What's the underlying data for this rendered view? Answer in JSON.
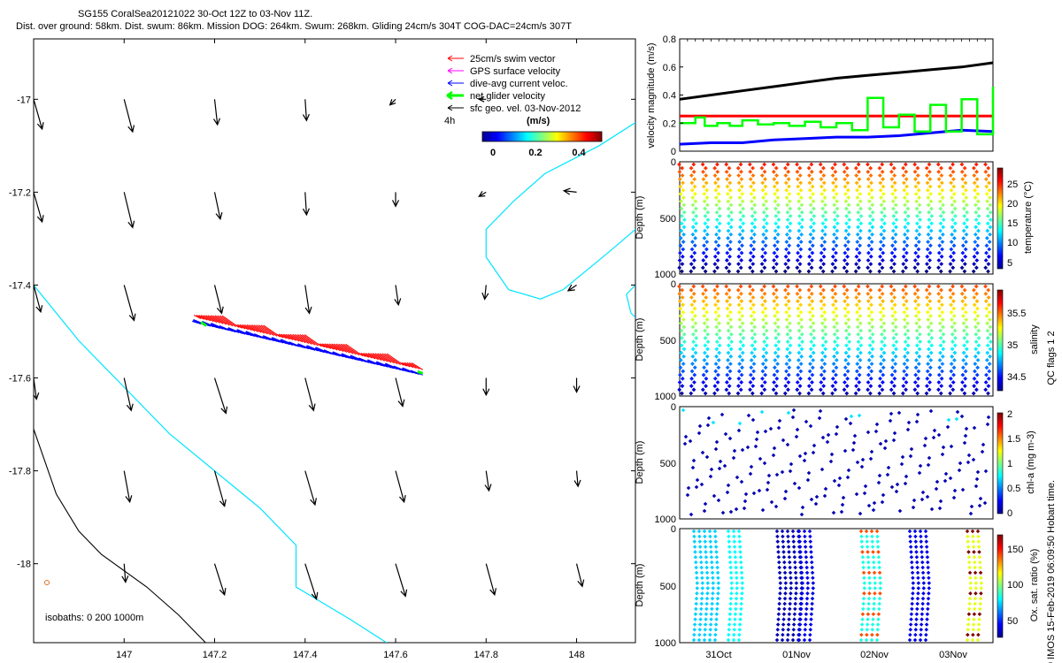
{
  "header": {
    "line1": "SG155 CoralSea20121022 30-Oct 12Z to 03-Nov 11Z.",
    "line2": "Dist. over ground: 58km. Dist. swum: 86km. Mission DOG: 264km. Swum: 268km. Gliding 24cm/s 304T COG-DAC=24cm/s 307T"
  },
  "chart_data": [
    {
      "type": "scatter",
      "name": "map",
      "xlim": [
        146.8,
        148.13
      ],
      "ylim": [
        -18.17,
        -16.87
      ],
      "xticks": [
        147,
        147.2,
        147.4,
        147.6,
        147.8,
        148
      ],
      "xtick_labels": [
        "147",
        "147.2",
        "147.4",
        "147.6",
        "147.8",
        "148"
      ],
      "yticks": [
        -17,
        -17.2,
        -17.4,
        -17.6,
        -17.8,
        -18
      ],
      "ytick_labels": [
        "-17",
        "-17.2",
        "-17.4",
        "-17.6",
        "-17.8",
        "-18"
      ],
      "legend": {
        "position": "top-right",
        "entries": [
          {
            "label": "25cm/s swim vector",
            "color": "#ff0000"
          },
          {
            "label": "GPS surface velocity",
            "color": "#ff00ff"
          },
          {
            "label": "dive-avg current veloc.",
            "color": "#0000ff"
          },
          {
            "label": "net glider velocity",
            "color": "#00ff00"
          },
          {
            "label": "sfc geo. vel. 03-Nov-2012",
            "color": "#000000"
          }
        ]
      },
      "scale_label": "4h",
      "colorbar": {
        "title": "(m/s)",
        "ticks": [
          "0",
          "0.2",
          "0.4"
        ]
      },
      "isobaths_label": "isobaths: 0   200   1000m",
      "arrows": [
        {
          "lon": 147.0,
          "lat": -17.0,
          "u": 0.06,
          "v": -0.23
        },
        {
          "lon": 147.2,
          "lat": -17.0,
          "u": 0.02,
          "v": -0.18
        },
        {
          "lon": 147.4,
          "lat": -17.0,
          "u": 0.01,
          "v": -0.15
        },
        {
          "lon": 147.6,
          "lat": -17.0,
          "u": -0.04,
          "v": -0.04
        },
        {
          "lon": 147.8,
          "lat": -17.0,
          "u": -0.05,
          "v": 0.0
        },
        {
          "lon": 147.0,
          "lat": -17.2,
          "u": 0.06,
          "v": -0.25
        },
        {
          "lon": 147.2,
          "lat": -17.2,
          "u": 0.04,
          "v": -0.19
        },
        {
          "lon": 147.4,
          "lat": -17.2,
          "u": 0.01,
          "v": -0.16
        },
        {
          "lon": 147.6,
          "lat": -17.2,
          "u": 0.0,
          "v": -0.1
        },
        {
          "lon": 147.8,
          "lat": -17.2,
          "u": -0.05,
          "v": -0.03
        },
        {
          "lon": 148.0,
          "lat": -17.2,
          "u": -0.09,
          "v": 0.01
        },
        {
          "lon": 146.8,
          "lat": -17.0,
          "u": 0.06,
          "v": -0.21
        },
        {
          "lon": 146.8,
          "lat": -17.2,
          "u": 0.06,
          "v": -0.21
        },
        {
          "lon": 146.8,
          "lat": -17.4,
          "u": 0.05,
          "v": -0.19
        },
        {
          "lon": 146.8,
          "lat": -17.6,
          "u": 0.02,
          "v": -0.15
        },
        {
          "lon": 147.0,
          "lat": -17.4,
          "u": 0.07,
          "v": -0.25
        },
        {
          "lon": 147.2,
          "lat": -17.4,
          "u": 0.05,
          "v": -0.2
        },
        {
          "lon": 147.4,
          "lat": -17.4,
          "u": 0.03,
          "v": -0.2
        },
        {
          "lon": 147.6,
          "lat": -17.4,
          "u": 0.02,
          "v": -0.14
        },
        {
          "lon": 147.8,
          "lat": -17.4,
          "u": -0.01,
          "v": -0.1
        },
        {
          "lon": 148.0,
          "lat": -17.4,
          "u": -0.06,
          "v": -0.04
        },
        {
          "lon": 147.0,
          "lat": -17.6,
          "u": 0.05,
          "v": -0.23
        },
        {
          "lon": 147.2,
          "lat": -17.6,
          "u": 0.08,
          "v": -0.25
        },
        {
          "lon": 147.4,
          "lat": -17.6,
          "u": 0.06,
          "v": -0.23
        },
        {
          "lon": 147.6,
          "lat": -17.6,
          "u": 0.05,
          "v": -0.2
        },
        {
          "lon": 147.8,
          "lat": -17.6,
          "u": 0.0,
          "v": -0.12
        },
        {
          "lon": 148.0,
          "lat": -17.6,
          "u": 0.0,
          "v": -0.1
        },
        {
          "lon": 147.0,
          "lat": -17.8,
          "u": 0.04,
          "v": -0.22
        },
        {
          "lon": 147.2,
          "lat": -17.8,
          "u": 0.07,
          "v": -0.25
        },
        {
          "lon": 147.4,
          "lat": -17.8,
          "u": 0.07,
          "v": -0.24
        },
        {
          "lon": 147.6,
          "lat": -17.8,
          "u": 0.06,
          "v": -0.22
        },
        {
          "lon": 147.8,
          "lat": -17.8,
          "u": 0.02,
          "v": -0.14
        },
        {
          "lon": 148.0,
          "lat": -17.8,
          "u": 0.01,
          "v": -0.11
        },
        {
          "lon": 147.0,
          "lat": -18.0,
          "u": 0.01,
          "v": -0.13
        },
        {
          "lon": 147.2,
          "lat": -18.0,
          "u": 0.07,
          "v": -0.22
        },
        {
          "lon": 147.4,
          "lat": -18.0,
          "u": 0.08,
          "v": -0.25
        },
        {
          "lon": 147.6,
          "lat": -18.0,
          "u": 0.07,
          "v": -0.23
        },
        {
          "lon": 147.8,
          "lat": -18.0,
          "u": 0.06,
          "v": -0.22
        },
        {
          "lon": 148.0,
          "lat": -18.0,
          "u": 0.04,
          "v": -0.16
        }
      ],
      "track": {
        "start": [
          147.17,
          -17.48
        ],
        "end": [
          147.66,
          -17.59
        ]
      },
      "isobath_200m": [
        [
          146.8,
          -17.4
        ],
        [
          146.9,
          -17.52
        ],
        [
          147.0,
          -17.62
        ],
        [
          147.1,
          -17.72
        ],
        [
          147.2,
          -17.8
        ],
        [
          147.3,
          -17.88
        ],
        [
          147.38,
          -17.96
        ],
        [
          147.38,
          -18.05
        ],
        [
          147.5,
          -18.12
        ],
        [
          147.58,
          -18.17
        ]
      ],
      "isobath_0m": [
        [
          146.8,
          -17.71
        ],
        [
          146.85,
          -17.85
        ],
        [
          146.9,
          -17.93
        ],
        [
          146.95,
          -17.98
        ],
        [
          147.05,
          -18.05
        ],
        [
          147.12,
          -18.11
        ],
        [
          147.18,
          -18.17
        ]
      ],
      "coast_feature": [
        [
          148.13,
          -17.05
        ],
        [
          148.05,
          -17.1
        ],
        [
          147.93,
          -17.16
        ],
        [
          147.86,
          -17.22
        ],
        [
          147.8,
          -17.28
        ],
        [
          147.8,
          -17.34
        ],
        [
          147.85,
          -17.41
        ],
        [
          147.92,
          -17.43
        ],
        [
          147.97,
          -17.41
        ],
        [
          148.07,
          -17.33
        ],
        [
          148.13,
          -17.28
        ]
      ],
      "coast_feature2": [
        [
          148.13,
          -17.4
        ],
        [
          148.11,
          -17.42
        ],
        [
          148.12,
          -17.46
        ],
        [
          148.13,
          -17.47
        ]
      ]
    },
    {
      "type": "line",
      "name": "velocity",
      "ylabel": "velocity magnitude (m/s)",
      "ylim": [
        0,
        0.8
      ],
      "yticks": [
        0,
        0.2,
        0.4,
        0.6,
        0.8
      ],
      "ytick_labels": [
        "0",
        "0.2",
        "0.4",
        "0.6",
        "0.8"
      ],
      "xlim": [
        0,
        1
      ],
      "series": [
        {
          "name": "cumulative",
          "color": "#000000",
          "x": [
            0,
            0.1,
            0.2,
            0.3,
            0.4,
            0.5,
            0.6,
            0.7,
            0.8,
            0.9,
            1.0
          ],
          "values": [
            0.37,
            0.4,
            0.43,
            0.46,
            0.49,
            0.52,
            0.54,
            0.56,
            0.58,
            0.6,
            0.63
          ]
        },
        {
          "name": "swim",
          "color": "#ff0000",
          "x": [
            0,
            1.0
          ],
          "values": [
            0.25,
            0.25
          ]
        },
        {
          "name": "dive-avg current",
          "color": "#0000ff",
          "x": [
            0,
            0.1,
            0.2,
            0.3,
            0.4,
            0.5,
            0.6,
            0.7,
            0.8,
            0.9,
            1.0
          ],
          "values": [
            0.05,
            0.06,
            0.06,
            0.08,
            0.09,
            0.1,
            0.1,
            0.11,
            0.13,
            0.15,
            0.14
          ]
        },
        {
          "name": "net glider",
          "color": "#00ff00",
          "x": [
            0,
            0.05,
            0.08,
            0.12,
            0.16,
            0.2,
            0.25,
            0.3,
            0.35,
            0.4,
            0.45,
            0.5,
            0.55,
            0.6,
            0.65,
            0.7,
            0.75,
            0.8,
            0.85,
            0.9,
            0.95,
            1.0
          ],
          "values": [
            0.2,
            0.24,
            0.18,
            0.2,
            0.18,
            0.22,
            0.19,
            0.2,
            0.18,
            0.21,
            0.17,
            0.2,
            0.15,
            0.38,
            0.17,
            0.26,
            0.14,
            0.33,
            0.14,
            0.37,
            0.12,
            0.46
          ]
        }
      ]
    }
  ],
  "profiles": [
    {
      "ylabel": "Depth (m)",
      "cblabel": "temperature (°C)",
      "yticks": [
        "0",
        "500",
        "1000"
      ],
      "cbticks": [
        "5",
        "10",
        "15",
        "20",
        "25"
      ]
    },
    {
      "ylabel": "Depth (m)",
      "cblabel": "salinity",
      "yticks": [
        "0",
        "500",
        "1000"
      ],
      "cbticks": [
        "34.5",
        "35",
        "35.5"
      ]
    },
    {
      "ylabel": "Depth (m)",
      "cblabel": "chl-a (mg m-3)",
      "yticks": [
        "0",
        "500",
        "1000"
      ],
      "cbticks": [
        "0",
        "0.5",
        "1",
        "1.5",
        "2"
      ]
    },
    {
      "ylabel": "Depth (m)",
      "cblabel": "Ox. sat. ratio (%)",
      "yticks": [
        "0",
        "500",
        "1000"
      ],
      "cbticks": [
        "50",
        "100",
        "150"
      ]
    }
  ],
  "time_axis": {
    "ticks": [
      "31Oct",
      "01Nov",
      "02Nov",
      "03Nov"
    ]
  },
  "side_text": {
    "flags": "QC flags  1  2",
    "credit": "© IMOS 15-Feb-2019 06:09:50 Hobart time."
  }
}
